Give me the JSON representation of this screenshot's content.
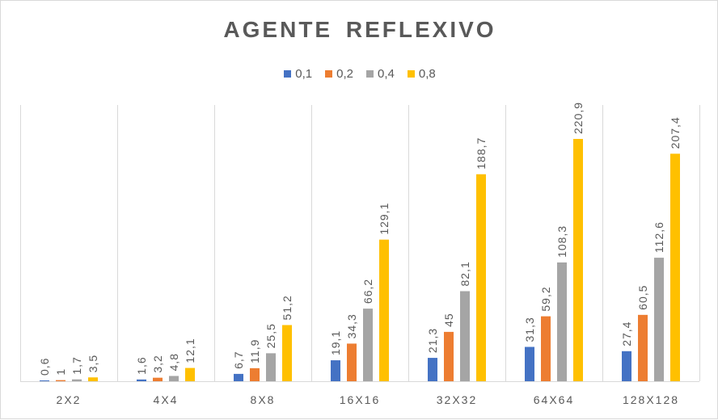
{
  "chart_data": {
    "type": "bar",
    "title": "AGENTE  REFLEXIVO",
    "categories": [
      "2X2",
      "4X4",
      "8X8",
      "16X16",
      "32X32",
      "64X64",
      "128X128"
    ],
    "series": [
      {
        "name": "0,1",
        "color": "#4472C4",
        "values": [
          0.6,
          1.6,
          6.7,
          19.1,
          21.3,
          31.3,
          27.4
        ],
        "labels": [
          "0,6",
          "1,6",
          "6,7",
          "19,1",
          "21,3",
          "31,3",
          "27,4"
        ]
      },
      {
        "name": "0,2",
        "color": "#ED7D31",
        "values": [
          1,
          3.2,
          11.9,
          34.3,
          45,
          59.2,
          60.5
        ],
        "labels": [
          "1",
          "3,2",
          "11,9",
          "34,3",
          "45",
          "59,2",
          "60,5"
        ]
      },
      {
        "name": "0,4",
        "color": "#A5A5A5",
        "values": [
          1.7,
          4.8,
          25.5,
          66.2,
          82.1,
          108.3,
          112.6
        ],
        "labels": [
          "1,7",
          "4,8",
          "25,5",
          "66,2",
          "82,1",
          "108,3",
          "112,6"
        ]
      },
      {
        "name": "0,8",
        "color": "#FFC000",
        "values": [
          3.5,
          12.1,
          51.2,
          129.1,
          188.7,
          220.9,
          207.4
        ],
        "labels": [
          "3,5",
          "12,1",
          "51,2",
          "129,1",
          "188,7",
          "220,9",
          "207,4"
        ]
      }
    ],
    "ylim": [
      0,
      220.9
    ],
    "xlabel": "",
    "ylabel": "",
    "grid": "vertical category separators",
    "legend_position": "top"
  }
}
